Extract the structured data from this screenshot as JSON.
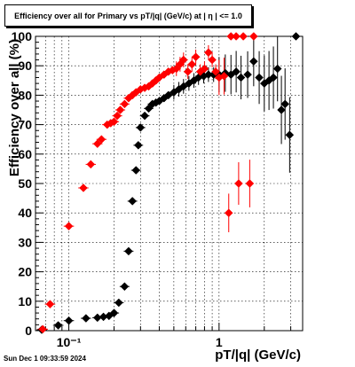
{
  "title": "Efficiency over all for Primary vs pT/|q| (GeV/c) at |  η  | <= 1.0",
  "footer_date": "Sun Dec  1 09:33:59 2024",
  "colors": {
    "black_series": "#000000",
    "red_series": "#ff0000",
    "grid": "#000000"
  },
  "chart_data": {
    "type": "scatter",
    "title": "Efficiency over all for Primary vs pT/|q| (GeV/c) at |  η  | <= 1.0",
    "xlabel": "pT/|q| (GeV/c)",
    "ylabel": "Efficiency over all (%)",
    "xscale": "log",
    "xlim": [
      0.06,
      3.6
    ],
    "ylim": [
      0,
      100
    ],
    "xticks": [
      {
        "value": 0.1,
        "label": "10⁻¹"
      },
      {
        "value": 1,
        "label": "1"
      }
    ],
    "yticks": [
      0,
      10,
      20,
      30,
      40,
      50,
      60,
      70,
      80,
      90,
      100
    ],
    "grid": true,
    "series": [
      {
        "marker": "diamond",
        "color": "#000000",
        "points": [
          {
            "x": 0.066,
            "y": 0.3
          },
          {
            "x": 0.085,
            "y": 1.8
          },
          {
            "x": 0.1,
            "y": 3.4
          },
          {
            "x": 0.13,
            "y": 4.2
          },
          {
            "x": 0.155,
            "y": 4.4
          },
          {
            "x": 0.17,
            "y": 4.7
          },
          {
            "x": 0.185,
            "y": 5.0
          },
          {
            "x": 0.2,
            "y": 6.0
          },
          {
            "x": 0.215,
            "y": 9.5
          },
          {
            "x": 0.235,
            "y": 15.0
          },
          {
            "x": 0.25,
            "y": 27.0
          },
          {
            "x": 0.265,
            "y": 44.0
          },
          {
            "x": 0.28,
            "y": 54.5
          },
          {
            "x": 0.29,
            "y": 63.0
          },
          {
            "x": 0.3,
            "y": 69.0
          },
          {
            "x": 0.32,
            "y": 73.0
          },
          {
            "x": 0.34,
            "y": 75.5
          },
          {
            "x": 0.36,
            "y": 77.0
          },
          {
            "x": 0.38,
            "y": 77.5
          },
          {
            "x": 0.4,
            "y": 78.0
          },
          {
            "x": 0.43,
            "y": 79.0
          },
          {
            "x": 0.46,
            "y": 80.0
          },
          {
            "x": 0.5,
            "y": 81.0
          },
          {
            "x": 0.54,
            "y": 82.0
          },
          {
            "x": 0.58,
            "y": 83.0
          },
          {
            "x": 0.63,
            "y": 84.0
          },
          {
            "x": 0.68,
            "y": 85.0
          },
          {
            "x": 0.73,
            "y": 86.0
          },
          {
            "x": 0.79,
            "y": 86.5
          },
          {
            "x": 0.85,
            "y": 87.0
          },
          {
            "x": 0.92,
            "y": 87.0
          },
          {
            "x": 1.0,
            "y": 87.0
          },
          {
            "x": 1.1,
            "y": 87.5
          },
          {
            "x": 1.2,
            "y": 87.0
          },
          {
            "x": 1.3,
            "y": 88.0
          },
          {
            "x": 1.4,
            "y": 86.0
          },
          {
            "x": 1.55,
            "y": 87.0
          },
          {
            "x": 1.7,
            "y": 91.5
          },
          {
            "x": 1.85,
            "y": 86.0
          },
          {
            "x": 2.0,
            "y": 84.0
          },
          {
            "x": 2.15,
            "y": 85.0
          },
          {
            "x": 2.3,
            "y": 86.0
          },
          {
            "x": 2.45,
            "y": 89.0
          },
          {
            "x": 2.6,
            "y": 75.0
          },
          {
            "x": 2.75,
            "y": 77.0
          },
          {
            "x": 2.95,
            "y": 66.5
          },
          {
            "x": 3.25,
            "y": 100.0
          }
        ]
      },
      {
        "marker": "diamond",
        "color": "#ff0000",
        "points": [
          {
            "x": 0.067,
            "y": 0.5
          },
          {
            "x": 0.075,
            "y": 9.0
          },
          {
            "x": 0.1,
            "y": 35.5
          },
          {
            "x": 0.125,
            "y": 48.5
          },
          {
            "x": 0.14,
            "y": 56.5
          },
          {
            "x": 0.155,
            "y": 63.5
          },
          {
            "x": 0.165,
            "y": 65.0
          },
          {
            "x": 0.18,
            "y": 70.0
          },
          {
            "x": 0.19,
            "y": 70.5
          },
          {
            "x": 0.2,
            "y": 71.0
          },
          {
            "x": 0.21,
            "y": 73.0
          },
          {
            "x": 0.22,
            "y": 75.0
          },
          {
            "x": 0.235,
            "y": 77.0
          },
          {
            "x": 0.25,
            "y": 79.0
          },
          {
            "x": 0.265,
            "y": 80.0
          },
          {
            "x": 0.28,
            "y": 81.0
          },
          {
            "x": 0.3,
            "y": 82.0
          },
          {
            "x": 0.32,
            "y": 82.5
          },
          {
            "x": 0.34,
            "y": 83.0
          },
          {
            "x": 0.36,
            "y": 84.0
          },
          {
            "x": 0.38,
            "y": 85.0
          },
          {
            "x": 0.4,
            "y": 86.0
          },
          {
            "x": 0.43,
            "y": 87.0
          },
          {
            "x": 0.46,
            "y": 88.0
          },
          {
            "x": 0.49,
            "y": 88.5
          },
          {
            "x": 0.52,
            "y": 89.0
          },
          {
            "x": 0.55,
            "y": 90.5
          },
          {
            "x": 0.58,
            "y": 92.0
          },
          {
            "x": 0.62,
            "y": 88.0
          },
          {
            "x": 0.66,
            "y": 90.5
          },
          {
            "x": 0.7,
            "y": 93.0
          },
          {
            "x": 0.75,
            "y": 88.0
          },
          {
            "x": 0.8,
            "y": 89.0
          },
          {
            "x": 0.85,
            "y": 94.5
          },
          {
            "x": 0.9,
            "y": 92.0
          },
          {
            "x": 0.95,
            "y": 88.0
          },
          {
            "x": 1.0,
            "y": 86.0
          },
          {
            "x": 1.08,
            "y": 86.5
          },
          {
            "x": 1.16,
            "y": 40.0
          },
          {
            "x": 1.2,
            "y": 100.0
          },
          {
            "x": 1.3,
            "y": 100.0
          },
          {
            "x": 1.35,
            "y": 50.0
          },
          {
            "x": 1.45,
            "y": 100.0
          },
          {
            "x": 1.6,
            "y": 50.0
          },
          {
            "x": 1.7,
            "y": 100.0
          }
        ]
      }
    ]
  }
}
